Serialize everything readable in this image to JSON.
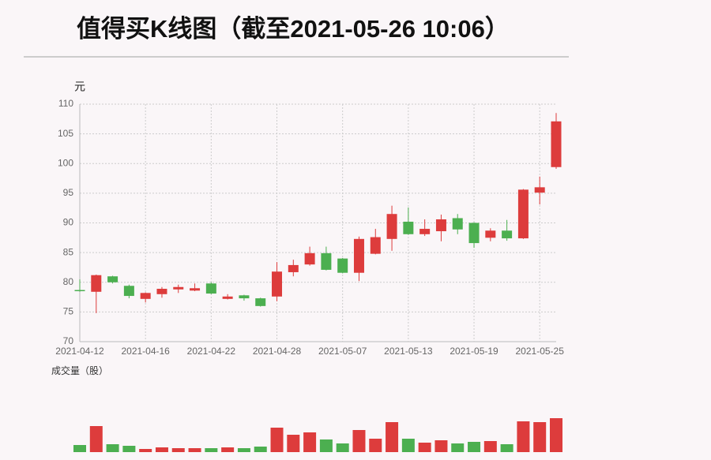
{
  "chart_data": [
    {
      "type": "candlestick",
      "title": "值得买K线图（截至2021-05-26 10:06）",
      "y_label": "元",
      "categories": [
        "2021-04-12",
        null,
        null,
        null,
        "2021-04-16",
        null,
        null,
        null,
        "2021-04-22",
        null,
        null,
        null,
        "2021-04-28",
        null,
        null,
        null,
        "2021-05-07",
        null,
        null,
        null,
        "2021-05-13",
        null,
        null,
        null,
        "2021-05-19",
        null,
        null,
        null,
        "2021-05-25",
        null
      ],
      "open": [
        78.7,
        78.4,
        81.0,
        79.4,
        77.2,
        78.0,
        78.8,
        78.6,
        79.8,
        77.2,
        77.8,
        77.3,
        77.6,
        81.7,
        83.0,
        84.9,
        84.0,
        81.6,
        84.8,
        87.3,
        90.2,
        88.1,
        88.6,
        90.8,
        90.0,
        87.5,
        88.7,
        87.4,
        95.1,
        99.4
      ],
      "high": [
        80.5,
        81.3,
        81.1,
        79.6,
        78.3,
        79.2,
        79.6,
        79.8,
        80.0,
        78.0,
        77.9,
        77.4,
        83.4,
        83.8,
        86.0,
        86.0,
        84.1,
        87.7,
        89.0,
        92.9,
        92.6,
        90.6,
        91.4,
        91.5,
        90.1,
        89.1,
        90.5,
        95.7,
        97.8,
        108.5
      ],
      "low": [
        78.4,
        74.8,
        79.8,
        77.3,
        76.6,
        77.4,
        78.2,
        78.5,
        78.0,
        77.1,
        76.9,
        75.9,
        76.8,
        81.0,
        82.8,
        82.0,
        81.5,
        80.2,
        84.7,
        85.3,
        88.0,
        87.8,
        86.9,
        88.1,
        85.8,
        86.9,
        87.0,
        87.3,
        93.1,
        99.1
      ],
      "close": [
        78.5,
        81.2,
        80.0,
        77.7,
        78.2,
        78.9,
        79.2,
        79.0,
        78.1,
        77.6,
        77.3,
        76.0,
        81.8,
        82.9,
        84.9,
        82.1,
        81.6,
        87.3,
        87.6,
        91.5,
        88.1,
        89.0,
        90.6,
        88.9,
        86.6,
        88.7,
        87.4,
        95.6,
        96.0,
        107.1
      ],
      "up_color": "#dd3c3c",
      "down_color": "#4caf50",
      "ylim": [
        70,
        110
      ],
      "yticks": [
        70,
        75,
        80,
        85,
        90,
        95,
        100,
        105,
        110
      ],
      "grid": true
    },
    {
      "type": "bar",
      "title": "成交量（股）",
      "values": [
        9,
        33,
        10,
        8,
        4,
        6,
        5,
        5,
        5,
        6,
        5,
        7,
        31,
        22,
        25,
        16,
        11,
        28,
        17,
        38,
        17,
        12,
        15,
        11,
        13,
        14,
        10,
        39,
        38,
        43
      ],
      "ylim": [
        0,
        45
      ]
    }
  ]
}
